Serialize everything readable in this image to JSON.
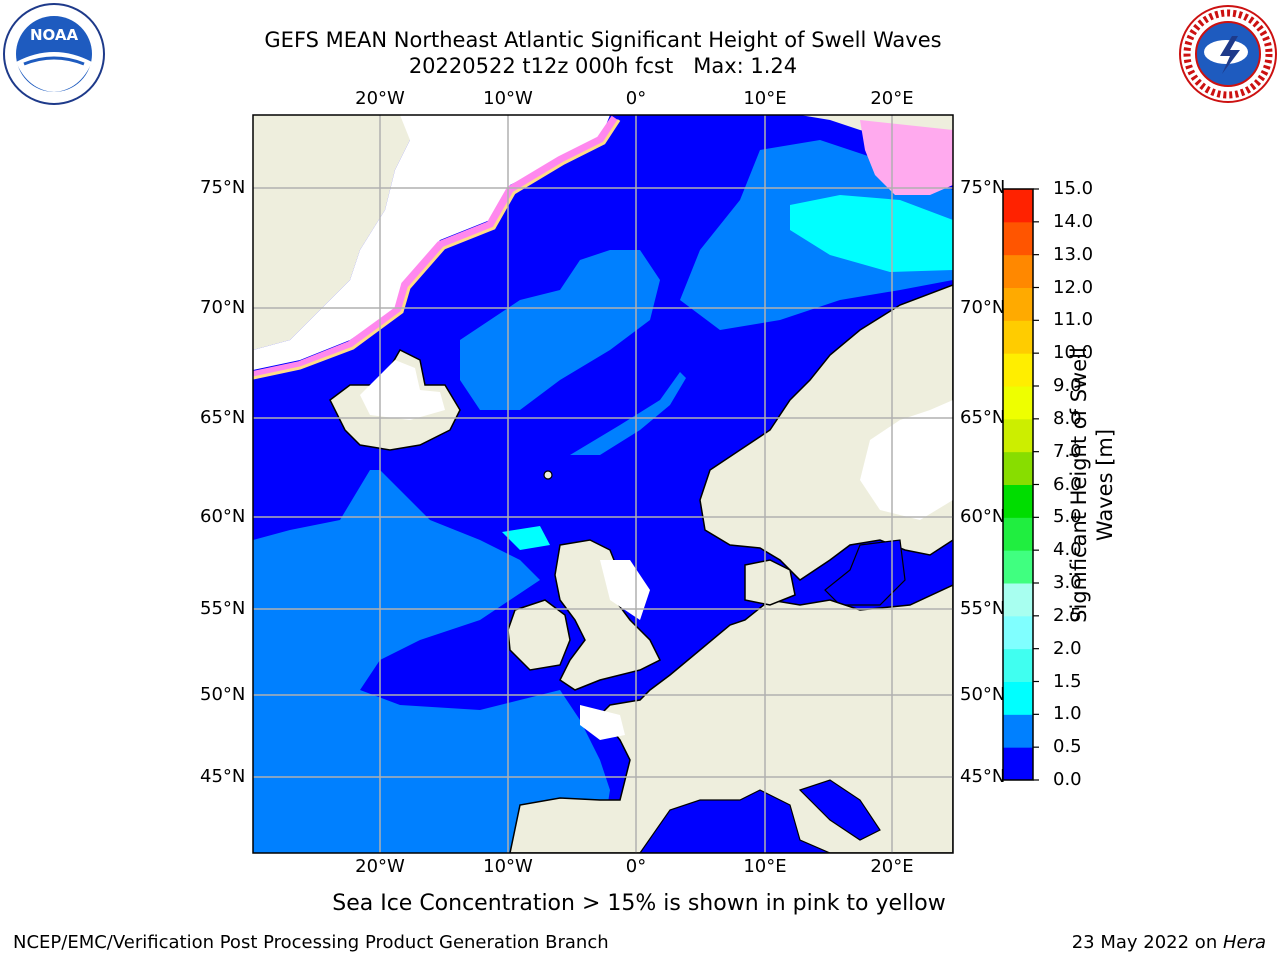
{
  "header": {
    "title_line1": "GEFS MEAN Northeast Atlantic Significant Height of Swell Waves",
    "title_line2": "20220522 t12z 000h fcst   Max: 1.24"
  },
  "logos": {
    "left": {
      "icon": "noaa-logo-icon",
      "text": "NOAA"
    },
    "right": {
      "icon": "nws-logo-icon",
      "text": "NATIONAL WEATHER SERVICE"
    }
  },
  "map": {
    "lon_ticks_top": [
      "20°W",
      "10°W",
      "0°",
      "10°E",
      "20°E"
    ],
    "lon_ticks_bottom": [
      "20°W",
      "10°W",
      "0°",
      "10°E",
      "20°E"
    ],
    "lat_ticks_left": [
      "75°N",
      "70°N",
      "65°N",
      "60°N",
      "55°N",
      "50°N",
      "45°N"
    ],
    "lat_ticks_right": [
      "75°N",
      "70°N",
      "65°N",
      "60°N",
      "55°N",
      "50°N",
      "45°N"
    ],
    "colors": {
      "ocean_low": "#0000ff",
      "ocean_mid": "#0080ff",
      "ocean_high": "#00ffff",
      "land": "#eeeedd",
      "ice_pink": "#ff88ee",
      "ice_yellow": "#ffdd88",
      "grid": "#b0b0b0"
    }
  },
  "colorbar": {
    "title": "Significant Height of Swell Waves [m]",
    "labels": [
      "0.0",
      "0.5",
      "1.0",
      "1.5",
      "2.0",
      "2.5",
      "3.0",
      "4.0",
      "5.0",
      "6.0",
      "7.0",
      "8.0",
      "9.0",
      "10.0",
      "11.0",
      "12.0",
      "13.0",
      "14.0",
      "15.0"
    ],
    "colors": [
      "#0000ff",
      "#0080ff",
      "#00ffff",
      "#40fff0",
      "#80ffff",
      "#a8fff0",
      "#40ff80",
      "#20ee40",
      "#00dd00",
      "#88dd00",
      "#ccee00",
      "#eeff00",
      "#ffee00",
      "#ffcc00",
      "#ffaa00",
      "#ff8800",
      "#ff5500",
      "#ff2200",
      "#ff0000"
    ]
  },
  "footer": {
    "note": "Sea Ice Concentration > 15% is shown in pink to yellow",
    "left": "NCEP/EMC/Verification Post Processing Product Generation Branch",
    "right_prefix": "23 May 2022 on ",
    "right_host": "Hera"
  }
}
